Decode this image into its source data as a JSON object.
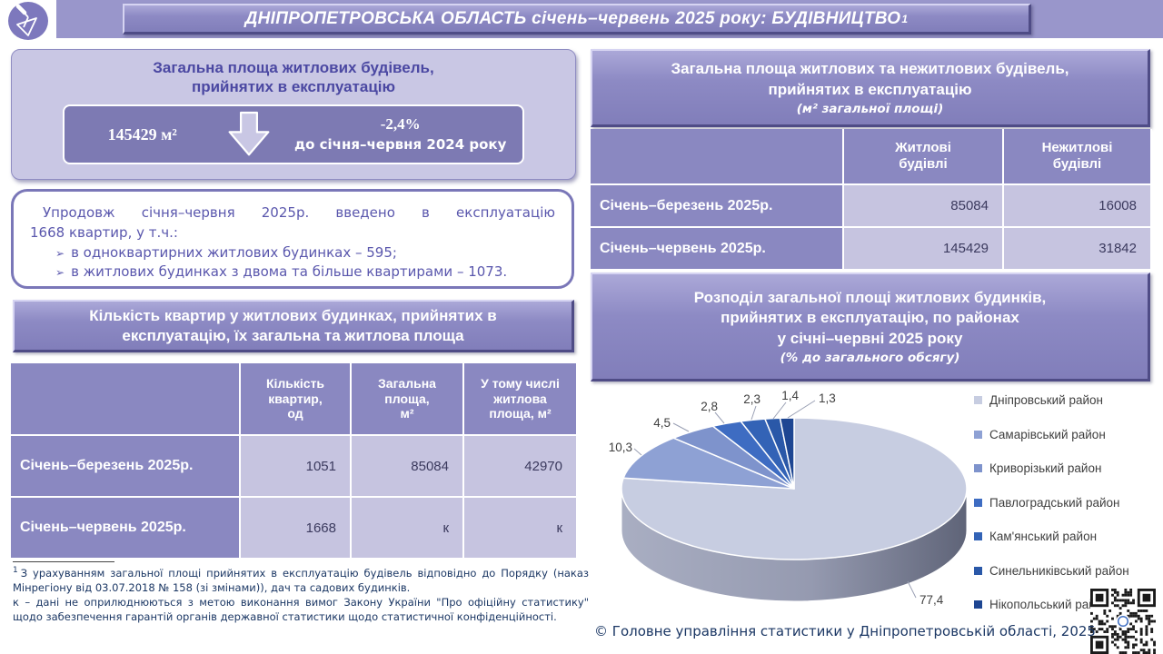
{
  "header": {
    "title": "ДНІПРОПЕТРОВСЬКА ОБЛАСТЬ січень–червень 2025 року: БУДІВНИЦТВО",
    "title_superscript": "1"
  },
  "stat_box": {
    "title": "Загальна площа житлових будівель,\nприйнятих в експлуатацію",
    "value": "145429 м²",
    "change": "-2,4%",
    "change_caption": "до січня–червня 2024 року"
  },
  "info_box": {
    "line1": "Упродовж січня–червня 2025р. введено в експлуатацію",
    "line2": "1668 квартир, у т.ч.:",
    "bullet_marker": "➢",
    "bullets": [
      "в одноквартирних житлових будинках – 595;",
      "в житлових будинках з двома та більше квартирами – 1073."
    ]
  },
  "apartments_table": {
    "title": "Кількість квартир у житлових будинках, прийнятих в експлуатацію, їх загальна та житлова площа",
    "columns": [
      "Кількість\nквартир,\nод",
      "Загальна\nплоща,\nм²",
      "У тому числі\nжитлова\nплоща, м²"
    ],
    "rows": [
      {
        "label": "Січень–березень 2025р.",
        "values": [
          "1051",
          "85084",
          "42970"
        ]
      },
      {
        "label": "Січень–червень 2025р.",
        "values": [
          "1668",
          "к",
          "к"
        ]
      }
    ]
  },
  "area_table": {
    "title": "Загальна площа житлових та нежитлових будівель,\nприйнятих в експлуатацію",
    "subtitle": "(м² загальної площі)",
    "columns": [
      "Житлові\nбудівлі",
      "Нежитлові\nбудівлі"
    ],
    "rows": [
      {
        "label": "Січень–березень 2025р.",
        "values": [
          "85084",
          "16008"
        ]
      },
      {
        "label": "Січень–червень 2025р.",
        "values": [
          "145429",
          "31842"
        ]
      }
    ]
  },
  "chart_section": {
    "title": "Розподіл загальної площі житлових будинків,\nприйнятих в експлуатацію, по районах\nу січні–червні 2025 року",
    "subtitle": "(% до загального обсягу)"
  },
  "chart_data": {
    "type": "pie",
    "style": "3d",
    "title": "Розподіл загальної площі житлових будинків, прийнятих в експлуатацію, по районах у січні–червні 2025 року",
    "unit": "% до загального обсягу",
    "labels": [
      "Дніпровський район",
      "Самарівський район",
      "Криворізький район",
      "Павлоградський район",
      "Кам'янський район",
      "Синельниківський район",
      "Нікопольський район"
    ],
    "values": [
      77.4,
      10.3,
      4.5,
      2.8,
      2.3,
      1.4,
      1.3
    ],
    "value_labels": [
      "77,4",
      "10,3",
      "4,5",
      "2,8",
      "2,3",
      "1,4",
      "1,3"
    ],
    "colors": [
      "#c7cde1",
      "#8ea1d4",
      "#7e93cc",
      "#3e6cc2",
      "#3363b6",
      "#2a58a8",
      "#1e4692"
    ],
    "legend_position": "right",
    "start_angle_deg": 0,
    "direction": "clockwise"
  },
  "footnotes": {
    "note1_sup": "1",
    "note1": "З урахуванням загальної площі прийнятих в експлуатацію будівель відповідно до Порядку (наказ Мінрегіону від 03.07.2018 № 158 (зі змінами)), дач та садових будинків.",
    "note2": "к – дані не оприлюднюються з метою виконання вимог Закону України \"Про офіційну статистику\" щодо забезпечення гарантій органів державної статистики щодо статистичної конфіденційності."
  },
  "copyright": "© Головне управління статистики у Дніпропетровській області, 2025",
  "colors": {
    "strip": "#9996cb",
    "panel_light": "#c9c7e4",
    "panel_dark": "#7d7ab3",
    "bar_purple": "#8a88c1",
    "cell_light": "#c6c4e0",
    "text_purple": "#4b48a2",
    "text_navy": "#1b3764"
  }
}
